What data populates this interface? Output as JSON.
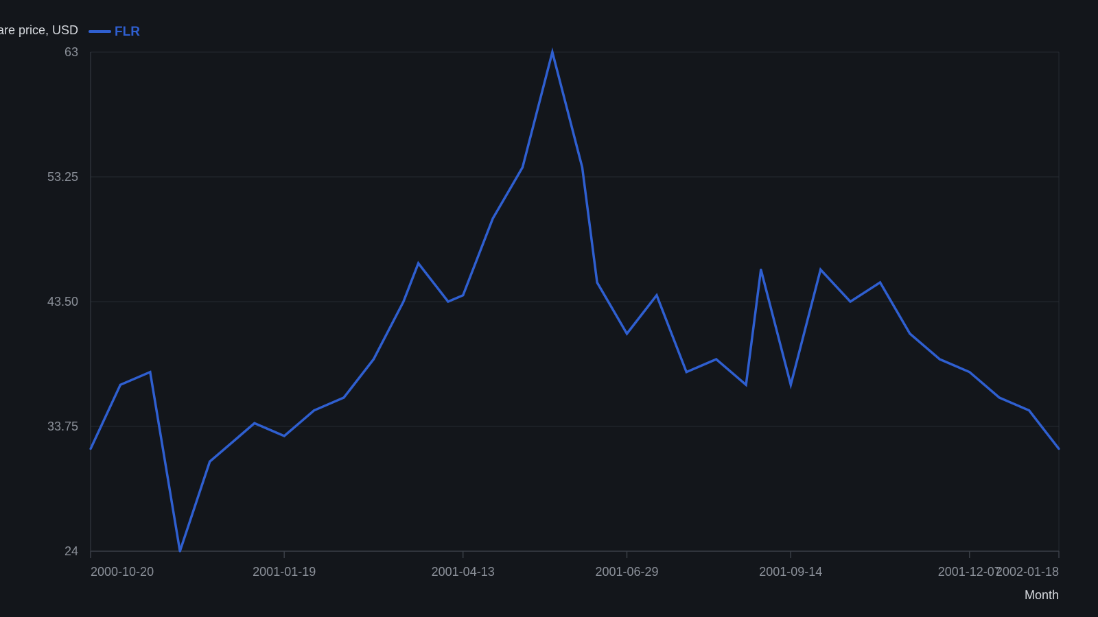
{
  "chart_data": {
    "type": "line",
    "ylabel": "Share price, USD",
    "xlabel": "Month",
    "ylim": [
      24,
      63
    ],
    "y_ticks": [
      "24",
      "33.75",
      "43.50",
      "53.25",
      "63"
    ],
    "x_ticks": [
      "2000-10-20",
      "2001-01-19",
      "2001-04-13",
      "2001-06-29",
      "2001-09-14",
      "2001-12-07",
      "2002-01-18"
    ],
    "grid": true,
    "legend_position": "top-left",
    "series": [
      {
        "name": "FLR",
        "color": "#2f5fd0",
        "points": [
          {
            "x": "2000-10-20",
            "y": 32
          },
          {
            "x": "2000-11-03",
            "y": 37
          },
          {
            "x": "2000-11-17",
            "y": 38
          },
          {
            "x": "2000-12-01",
            "y": 24
          },
          {
            "x": "2000-12-15",
            "y": 31
          },
          {
            "x": "2000-12-29",
            "y": 33
          },
          {
            "x": "2001-01-05",
            "y": 34
          },
          {
            "x": "2001-01-19",
            "y": 33
          },
          {
            "x": "2001-02-02",
            "y": 35
          },
          {
            "x": "2001-02-16",
            "y": 36
          },
          {
            "x": "2001-03-02",
            "y": 39
          },
          {
            "x": "2001-03-16",
            "y": 43.5
          },
          {
            "x": "2001-03-23",
            "y": 46.5
          },
          {
            "x": "2001-04-06",
            "y": 43.5
          },
          {
            "x": "2001-04-13",
            "y": 44
          },
          {
            "x": "2001-04-27",
            "y": 50
          },
          {
            "x": "2001-05-11",
            "y": 54
          },
          {
            "x": "2001-05-25",
            "y": 63
          },
          {
            "x": "2001-06-08",
            "y": 54
          },
          {
            "x": "2001-06-15",
            "y": 45
          },
          {
            "x": "2001-06-29",
            "y": 41
          },
          {
            "x": "2001-07-13",
            "y": 44
          },
          {
            "x": "2001-07-27",
            "y": 38
          },
          {
            "x": "2001-08-10",
            "y": 39
          },
          {
            "x": "2001-08-24",
            "y": 37
          },
          {
            "x": "2001-08-31",
            "y": 46
          },
          {
            "x": "2001-09-14",
            "y": 37
          },
          {
            "x": "2001-09-28",
            "y": 46
          },
          {
            "x": "2001-10-12",
            "y": 43.5
          },
          {
            "x": "2001-10-26",
            "y": 45
          },
          {
            "x": "2001-11-09",
            "y": 41
          },
          {
            "x": "2001-11-23",
            "y": 39
          },
          {
            "x": "2001-12-07",
            "y": 38
          },
          {
            "x": "2001-12-21",
            "y": 36
          },
          {
            "x": "2002-01-04",
            "y": 35
          },
          {
            "x": "2002-01-18",
            "y": 32
          }
        ]
      }
    ]
  },
  "colors": {
    "background": "#13161b",
    "grid": "#262a31",
    "axis": "#3a3f47",
    "tick_text": "#8b9099",
    "title_text": "#d6d9de"
  }
}
